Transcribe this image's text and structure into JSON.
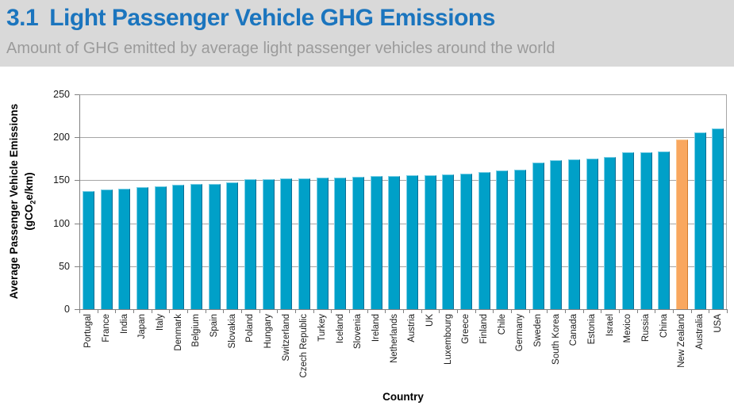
{
  "header": {
    "section_number": "3.1",
    "title": "Light Passenger Vehicle GHG Emissions",
    "subtitle": "Amount of GHG emitted by average light passenger vehicles around the world"
  },
  "chart_data": {
    "type": "bar",
    "xlabel": "Country",
    "ylabel_line1": "Average Passenger Vehicle Emissions",
    "ylabel_line2": "(gCO2e/km)",
    "ylim": [
      0,
      250
    ],
    "y_ticks": [
      0,
      50,
      100,
      150,
      200,
      250
    ],
    "grid": "horizontal",
    "legend": "none",
    "categories": [
      "Portugal",
      "France",
      "India",
      "Japan",
      "Italy",
      "Denmark",
      "Belgium",
      "Spain",
      "Slovakia",
      "Poland",
      "Hungary",
      "Switzerland",
      "Czech Republic",
      "Turkey",
      "Iceland",
      "Slovenia",
      "Ireland",
      "Netherlands",
      "Austria",
      "UK",
      "Luxembourg",
      "Greece",
      "Finland",
      "Chile",
      "Germany",
      "Sweden",
      "South Korea",
      "Canada",
      "Estonia",
      "Israel",
      "Mexico",
      "Russia",
      "China",
      "New Zealand",
      "Australia",
      "USA"
    ],
    "values": [
      137,
      139,
      140,
      142,
      143,
      145,
      146,
      146,
      148,
      151,
      151,
      152,
      152,
      153,
      153,
      154,
      155,
      155,
      156,
      156,
      157,
      158,
      160,
      161,
      162,
      171,
      173,
      174,
      175,
      177,
      183,
      183,
      184,
      197,
      206,
      210
    ],
    "highlight_category": "New Zealand",
    "colors": {
      "bar": "#00a0c8",
      "bar_highlight": "#f9a75f",
      "bar_highlight_border": "#d27c2e",
      "title_blue": "#1b75be",
      "header_bg": "#d9d9d9",
      "subtitle_gray": "#9b9b9b",
      "gridline": "#a6a6a6",
      "axis": "#808080"
    }
  }
}
